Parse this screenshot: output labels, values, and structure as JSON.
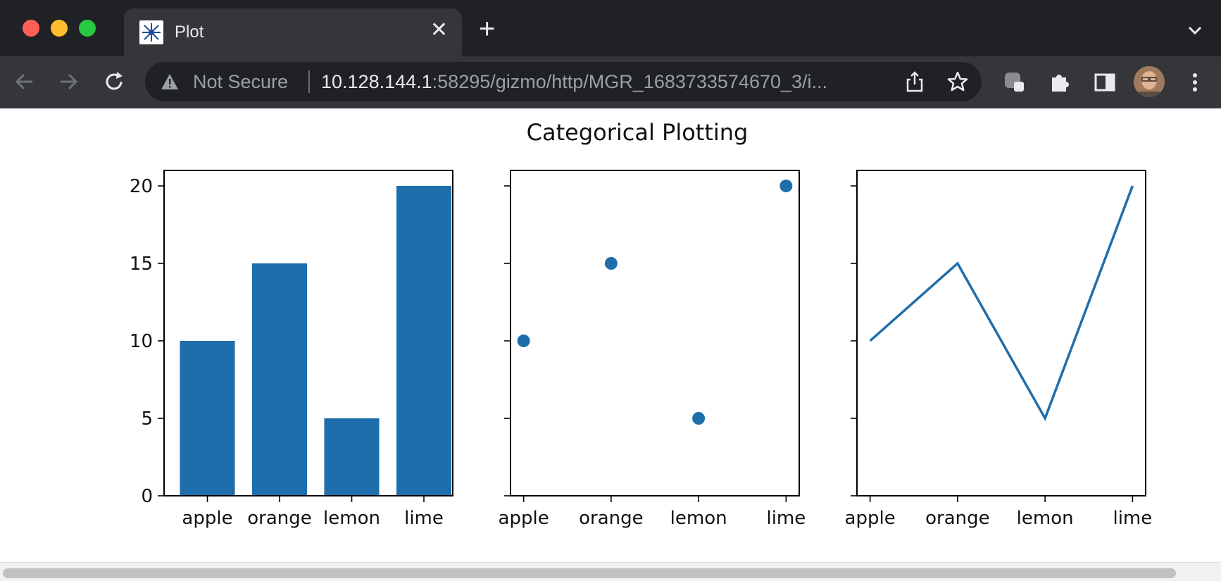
{
  "browser": {
    "tab_title": "Plot",
    "not_secure_label": "Not Secure",
    "url_host": "10.128.144.1",
    "url_rest": ":58295/gizmo/http/MGR_1683733574670_3/i...",
    "colors": {
      "tabbar": "#202124",
      "toolbar": "#35363a"
    }
  },
  "chart_data": [
    {
      "type": "bar",
      "title": "",
      "categories": [
        "apple",
        "orange",
        "lemon",
        "lime"
      ],
      "values": [
        10,
        15,
        5,
        20
      ],
      "ylim": [
        0,
        21
      ],
      "yticks": [
        "0",
        "5",
        "10",
        "15",
        "20"
      ],
      "color": "#1f6eac"
    },
    {
      "type": "scatter",
      "categories": [
        "apple",
        "orange",
        "lemon",
        "lime"
      ],
      "values": [
        10,
        15,
        5,
        20
      ],
      "ylim": [
        0,
        21
      ],
      "color": "#1f6eac"
    },
    {
      "type": "line",
      "categories": [
        "apple",
        "orange",
        "lemon",
        "lime"
      ],
      "values": [
        10,
        15,
        5,
        20
      ],
      "ylim": [
        0,
        21
      ],
      "color": "#1f6eac"
    }
  ],
  "figure": {
    "suptitle": "Categorical Plotting"
  }
}
